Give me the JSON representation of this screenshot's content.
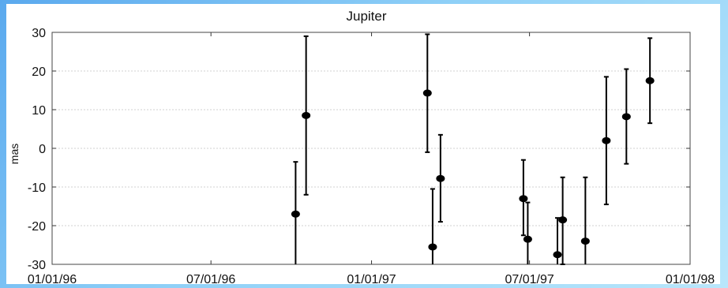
{
  "chart_data": {
    "type": "scatter",
    "title": "Jupiter",
    "xlabel": "",
    "ylabel": "mas",
    "xlim": [
      "1996-01-01",
      "1998-01-01"
    ],
    "ylim": [
      -30,
      30
    ],
    "x_ticks": [
      "1996-01-01",
      "1996-07-01",
      "1997-01-01",
      "1997-07-01",
      "1998-01-01"
    ],
    "x_tick_labels": [
      "01/01/96",
      "07/01/96",
      "01/01/97",
      "07/01/97",
      "01/01/98"
    ],
    "y_ticks": [
      30,
      20,
      10,
      0,
      -10,
      -20,
      -30
    ],
    "y_tick_labels": [
      "30",
      "20",
      "10",
      "0",
      "-10",
      "-20",
      "-30"
    ],
    "grid": true,
    "series": [
      {
        "points": [
          {
            "x": "1996-10-06",
            "y": -17,
            "err_low": -31,
            "err_high": -3.5
          },
          {
            "x": "1996-10-18",
            "y": 8.5,
            "err_low": -12,
            "err_high": 29
          },
          {
            "x": "1997-03-06",
            "y": 14.3,
            "err_low": -1,
            "err_high": 29.5
          },
          {
            "x": "1997-03-12",
            "y": -25.5,
            "err_low": -31,
            "err_high": -10.5
          },
          {
            "x": "1997-03-21",
            "y": -7.8,
            "err_low": -19,
            "err_high": 3.5
          },
          {
            "x": "1997-06-24",
            "y": -13,
            "err_low": -22.5,
            "err_high": -3
          },
          {
            "x": "1997-06-29",
            "y": -23.5,
            "err_low": -31,
            "err_high": -14
          },
          {
            "x": "1997-08-02",
            "y": -27.5,
            "err_low": -31,
            "err_high": -18
          },
          {
            "x": "1997-08-08",
            "y": -18.5,
            "err_low": -30,
            "err_high": -7.5
          },
          {
            "x": "1997-09-03",
            "y": -24,
            "err_low": -31,
            "err_high": -7.5
          },
          {
            "x": "1997-09-27",
            "y": 2,
            "err_low": -14.5,
            "err_high": 18.5
          },
          {
            "x": "1997-10-20",
            "y": 8.2,
            "err_low": -4,
            "err_high": 20.5
          },
          {
            "x": "1997-11-16",
            "y": 17.5,
            "err_low": 6.5,
            "err_high": 28.5
          }
        ]
      }
    ]
  }
}
